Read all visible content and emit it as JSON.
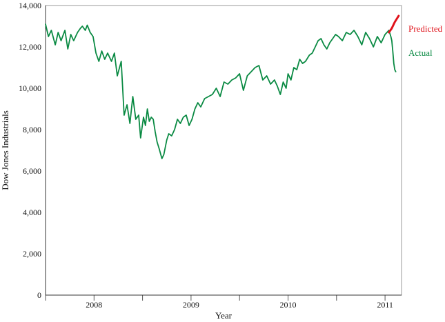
{
  "chart_data": {
    "type": "line",
    "title": "",
    "xlabel": "Year",
    "ylabel": "Dow Jones Industrials",
    "xlim": [
      2007.5,
      2011.17
    ],
    "ylim": [
      0,
      14000
    ],
    "grid": true,
    "y_ticks": [
      0,
      2000,
      4000,
      6000,
      8000,
      10000,
      12000,
      14000
    ],
    "y_tick_labels": [
      "0",
      "2,000",
      "4,000",
      "6,000",
      "8,000",
      "10,000",
      "12,000",
      "14,000"
    ],
    "x_minor_ticks": [
      2007.5,
      2008.0,
      2008.5,
      2009.0,
      2009.5,
      2010.0,
      2010.5,
      2011.0
    ],
    "x_tick_labels": [
      {
        "label": "2008",
        "x": 2008.0
      },
      {
        "label": "2009",
        "x": 2009.0
      },
      {
        "label": "2010",
        "x": 2010.0
      },
      {
        "label": "2011",
        "x": 2011.0
      }
    ],
    "legend_placement": "right, labels at line ends",
    "series": [
      {
        "name": "Actual",
        "color": "#0a8a43",
        "x": [
          2007.5,
          2007.53,
          2007.56,
          2007.6,
          2007.63,
          2007.66,
          2007.7,
          2007.73,
          2007.76,
          2007.79,
          2007.83,
          2007.86,
          2007.88,
          2007.91,
          2007.93,
          2007.96,
          2007.99,
          2008.02,
          2008.05,
          2008.08,
          2008.11,
          2008.14,
          2008.18,
          2008.21,
          2008.24,
          2008.28,
          2008.31,
          2008.34,
          2008.37,
          2008.4,
          2008.43,
          2008.46,
          2008.48,
          2008.51,
          2008.53,
          2008.55,
          2008.57,
          2008.59,
          2008.61,
          2008.63,
          2008.65,
          2008.67,
          2008.7,
          2008.72,
          2008.75,
          2008.77,
          2008.8,
          2008.83,
          2008.86,
          2008.89,
          2008.92,
          2008.95,
          2008.98,
          2009.01,
          2009.04,
          2009.07,
          2009.1,
          2009.14,
          2009.18,
          2009.22,
          2009.26,
          2009.3,
          2009.34,
          2009.38,
          2009.42,
          2009.46,
          2009.5,
          2009.54,
          2009.58,
          2009.62,
          2009.66,
          2009.7,
          2009.74,
          2009.78,
          2009.82,
          2009.86,
          2009.89,
          2009.92,
          2009.95,
          2009.98,
          2010.0,
          2010.03,
          2010.06,
          2010.09,
          2010.12,
          2010.15,
          2010.18,
          2010.22,
          2010.25,
          2010.28,
          2010.31,
          2010.34,
          2010.37,
          2010.4,
          2010.43,
          2010.46,
          2010.49,
          2010.52,
          2010.56,
          2010.6,
          2010.64,
          2010.68,
          2010.72,
          2010.76,
          2010.8,
          2010.84,
          2010.88,
          2010.92,
          2010.96,
          2011.0,
          2011.02,
          2011.04,
          2011.06,
          2011.07,
          2011.08,
          2011.09,
          2011.1,
          2011.11
        ],
        "y": [
          13100,
          12500,
          12800,
          12100,
          12700,
          12300,
          12800,
          11900,
          12600,
          12300,
          12700,
          12900,
          13000,
          12800,
          13050,
          12700,
          12500,
          11700,
          11300,
          11800,
          11400,
          11700,
          11300,
          11700,
          10600,
          11300,
          8700,
          9200,
          8300,
          9600,
          8500,
          8700,
          7600,
          8600,
          8200,
          9000,
          8400,
          8600,
          8500,
          7900,
          7400,
          7100,
          6600,
          6800,
          7500,
          7800,
          7700,
          8000,
          8500,
          8300,
          8600,
          8700,
          8200,
          8500,
          9000,
          9300,
          9100,
          9500,
          9600,
          9700,
          10000,
          9600,
          10300,
          10200,
          10400,
          10500,
          10700,
          9900,
          10600,
          10800,
          11000,
          11100,
          10400,
          10600,
          10200,
          10400,
          10100,
          9700,
          10300,
          10000,
          10700,
          10400,
          11000,
          10900,
          11400,
          11200,
          11300,
          11600,
          11700,
          12000,
          12300,
          12400,
          12100,
          11900,
          12200,
          12400,
          12600,
          12500,
          12300,
          12700,
          12600,
          12800,
          12500,
          12100,
          12700,
          12400,
          12000,
          12500,
          12200,
          12600,
          12700,
          12800,
          12500,
          12300,
          11800,
          11200,
          10900,
          10800
        ]
      },
      {
        "name": "Predicted",
        "color": "#e0121a",
        "x": [
          2011.04,
          2011.07,
          2011.1,
          2011.14
        ],
        "y": [
          12700,
          12900,
          13200,
          13500
        ]
      }
    ]
  }
}
